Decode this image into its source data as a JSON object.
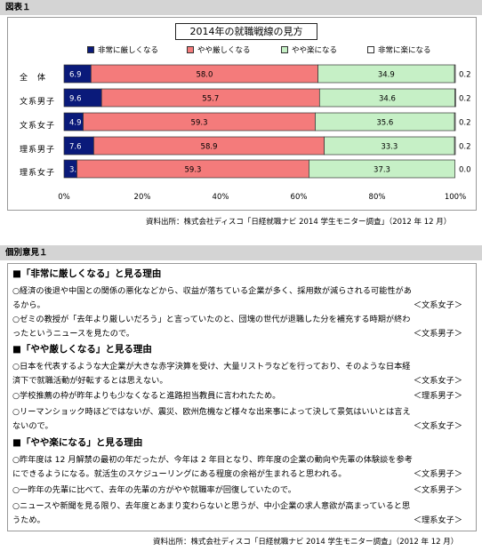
{
  "figure_header": "図表１",
  "chart_data": {
    "type": "bar",
    "orientation": "horizontal",
    "stacked": true,
    "title": "2014年の就職戦線の見方",
    "categories": [
      "全　体",
      "文系男子",
      "文系女子",
      "理系男子",
      "理系女子"
    ],
    "series": [
      {
        "name": "非常に厳しくなる",
        "color": "#0a1a7a",
        "values": [
          6.9,
          9.6,
          4.9,
          7.6,
          3.3
        ],
        "labels": [
          "6.9",
          "9.6",
          "4.9",
          "7.6",
          "3.3"
        ]
      },
      {
        "name": "やや厳しくなる",
        "color": "#f47b7b",
        "values": [
          58.0,
          55.7,
          59.3,
          58.9,
          59.3
        ],
        "labels": [
          "58.0",
          "55.7",
          "59.3",
          "58.9",
          "59.3"
        ]
      },
      {
        "name": "やや楽になる",
        "color": "#c6f0c6",
        "values": [
          34.9,
          34.6,
          35.6,
          33.3,
          37.3
        ],
        "labels": [
          "34.9",
          "34.6",
          "35.6",
          "33.3",
          "37.3"
        ]
      },
      {
        "name": "非常に楽になる",
        "color": "#ffffff",
        "values": [
          0.2,
          0.2,
          0.2,
          0.2,
          0.0
        ],
        "labels": [
          "0.2",
          "0.2",
          "0.2",
          "0.2",
          "0.0"
        ]
      }
    ],
    "xlim": [
      0,
      100
    ],
    "xticks": [
      "0%",
      "20%",
      "40%",
      "60%",
      "80%",
      "100%"
    ],
    "legend_position": "top"
  },
  "source_1": "資料出所：株式会社ディスコ「日経就職ナビ 2014 学生モニター調査」（2012 年 12 月）",
  "opinions_header": "個別意見１",
  "opinions": {
    "sections": [
      {
        "heading": "■「非常に厳しくなる」と見る理由",
        "items": [
          {
            "lines": [
              "○経済の後退や中国との関係の悪化などから、収益が落ちている企業が多く、採用数が減らされる可能性があ",
              "るから。"
            ],
            "attr": "＜文系女子＞"
          },
          {
            "lines": [
              "○ゼミの教授が「去年より厳しいだろう」と言っていたのと、団塊の世代が退職した分を補充する時期が終わ",
              "ったというニュースを見たので。"
            ],
            "attr": "＜文系男子＞"
          }
        ]
      },
      {
        "heading": "■「やや厳しくなる」と見る理由",
        "items": [
          {
            "lines": [
              "○日本を代表するような大企業が大きな赤字決算を受け、大量リストラなどを行っており、そのような日本経",
              "済下で就職活動が好転するとは思えない。"
            ],
            "attr": "＜文系女子＞"
          },
          {
            "lines": [
              "○学校推薦の枠が昨年よりも少なくなると進路担当教員に言われたため。"
            ],
            "attr": "＜理系男子＞"
          },
          {
            "lines": [
              "○リーマンショック時ほどではないが、震災、欧州危機など様々な出来事によって決して景気はいいとは言え",
              "ないので。"
            ],
            "attr": "＜文系女子＞"
          }
        ]
      },
      {
        "heading": "■「やや楽になる」と見る理由",
        "items": [
          {
            "lines": [
              "○昨年度は 12 月解禁の最初の年だったが、今年は 2 年目となり、昨年度の企業の動向や先輩の体験談を参考",
              "にできるようになる。就活生のスケジューリングにある程度の余裕が生まれると思われる。"
            ],
            "attr": "＜文系男子＞"
          },
          {
            "lines": [
              "○一昨年の先輩に比べて、去年の先輩の方がやや就職率が回復していたので。"
            ],
            "attr": "＜文系男子＞"
          },
          {
            "lines": [
              "○ニュースや新聞を見る限り、去年度とあまり変わらないと思うが、中小企業の求人意欲が高まっていると思",
              "うため。"
            ],
            "attr": "＜理系女子＞"
          }
        ]
      }
    ]
  },
  "source_2": "資料出所：株式会社ディスコ「日経就職ナビ 2014 学生モニター調査」（2012 年 12 月）"
}
